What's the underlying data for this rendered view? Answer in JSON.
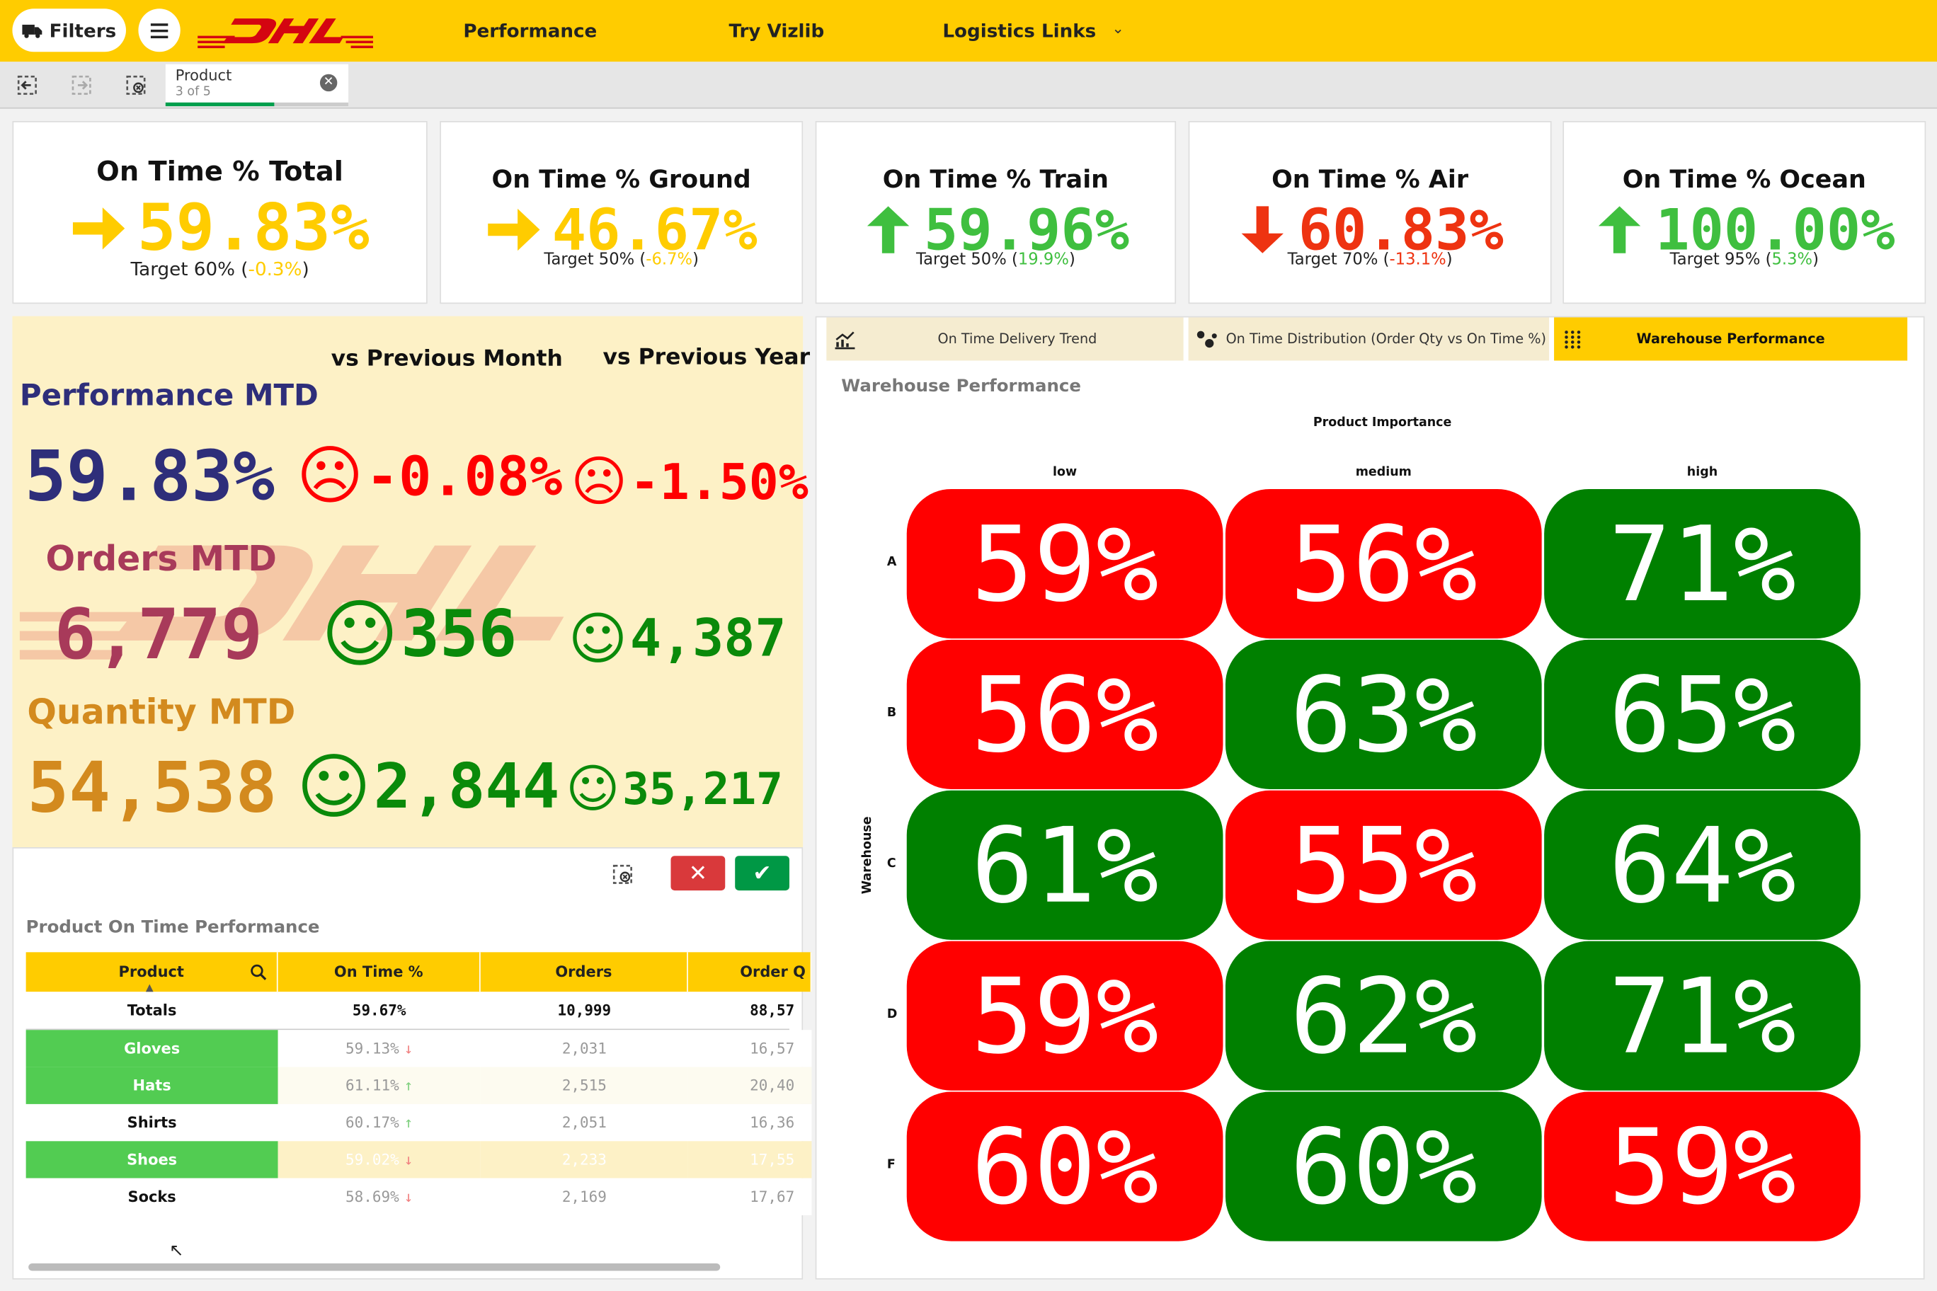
{
  "topbar": {
    "filters_label": "Filters",
    "nav": [
      "Performance",
      "Try Vizlib",
      "Logistics Links"
    ],
    "colors": {
      "bar": "#ffcc00",
      "brand_red": "#d40511"
    }
  },
  "selection": {
    "field": "Product",
    "count": "3 of 5"
  },
  "kpis": [
    {
      "title": "On Time % Total",
      "arrow": "right",
      "value": "59.83%",
      "target_label": "Target 60% (",
      "delta": "-0.3%",
      "close": ")",
      "value_color": "#ffcc00",
      "arrow_color": "#ffcc00"
    },
    {
      "title": "On Time % Ground",
      "arrow": "right",
      "value": "46.67%",
      "target_label": "Target 50% (",
      "delta": "-6.7%",
      "close": ")",
      "value_color": "#ffcc00",
      "arrow_color": "#ffcc00"
    },
    {
      "title": "On Time % Train",
      "arrow": "up",
      "value": "59.96%",
      "target_label": "Target 50% (",
      "delta": "19.9%",
      "close": ")",
      "value_color": "#3fbf3f",
      "arrow_color": "#3fbf3f"
    },
    {
      "title": "On Time % Air",
      "arrow": "down",
      "value": "60.83%",
      "target_label": "Target 70% (",
      "delta": "-13.1%",
      "close": ")",
      "value_color": "#ee3311",
      "arrow_color": "#ee3311"
    },
    {
      "title": "On Time % Ocean",
      "arrow": "up",
      "value": "100.00%",
      "target_label": "Target 95% (",
      "delta": "5.3%",
      "close": ")",
      "value_color": "#3fbf3f",
      "arrow_color": "#3fbf3f"
    }
  ],
  "mtd": {
    "vs_month": "vs Previous Month",
    "vs_year": "vs Previous Year",
    "performance": {
      "label": "Performance MTD",
      "value": "59.83%",
      "vs_month": "-0.08%",
      "vs_year": "-1.50%"
    },
    "orders": {
      "label": "Orders MTD",
      "value": "6,779",
      "vs_month": "356",
      "vs_year": "4,387"
    },
    "quantity": {
      "label": "Quantity MTD",
      "value": "54,538",
      "vs_month": "2,844",
      "vs_year": "35,217"
    }
  },
  "product_table": {
    "title": "Product On Time Performance",
    "headers": [
      "Product",
      "On Time %",
      "Orders",
      "Order Q"
    ],
    "totals": [
      "Totals",
      "59.67%",
      "10,999",
      "88,57"
    ],
    "rows": [
      {
        "product": "Gloves",
        "ontime": "59.13%",
        "trend": "down",
        "orders": "2,031",
        "qty": "16,57",
        "selected": true
      },
      {
        "product": "Hats",
        "ontime": "61.11%",
        "trend": "up",
        "orders": "2,515",
        "qty": "20,40",
        "selected": true
      },
      {
        "product": "Shirts",
        "ontime": "60.17%",
        "trend": "up",
        "orders": "2,051",
        "qty": "16,36",
        "selected": false
      },
      {
        "product": "Shoes",
        "ontime": "59.02%",
        "trend": "down",
        "orders": "2,233",
        "qty": "17,55",
        "selected": true
      },
      {
        "product": "Socks",
        "ontime": "58.69%",
        "trend": "down",
        "orders": "2,169",
        "qty": "17,67",
        "selected": false
      }
    ]
  },
  "tabs": [
    {
      "label": "On Time Delivery Trend",
      "icon": "line-chart-icon"
    },
    {
      "label": "On Time Distribution (Order Qty vs On Time %)",
      "icon": "scatter-icon"
    },
    {
      "label": "Warehouse Performance",
      "icon": "grid-icon",
      "active": true
    }
  ],
  "chart_data": {
    "type": "heatmap",
    "title": "Warehouse Performance",
    "xlabel": "Product Importance",
    "ylabel": "Warehouse",
    "x": [
      "low",
      "medium",
      "high"
    ],
    "y": [
      "A",
      "B",
      "C",
      "D",
      "F"
    ],
    "values": [
      [
        59,
        56,
        71
      ],
      [
        56,
        63,
        65
      ],
      [
        61,
        55,
        64
      ],
      [
        59,
        62,
        71
      ],
      [
        60,
        60,
        59
      ]
    ],
    "labels": [
      [
        "59%",
        "56%",
        "71%"
      ],
      [
        "56%",
        "63%",
        "65%"
      ],
      [
        "61%",
        "55%",
        "64%"
      ],
      [
        "59%",
        "62%",
        "71%"
      ],
      [
        "60%",
        "60%",
        "59%"
      ]
    ],
    "colors": {
      "good": "#008000",
      "bad": "#ff0000"
    },
    "good": [
      [
        false,
        false,
        true
      ],
      [
        false,
        true,
        true
      ],
      [
        true,
        false,
        true
      ],
      [
        false,
        true,
        true
      ],
      [
        false,
        true,
        false
      ]
    ]
  }
}
